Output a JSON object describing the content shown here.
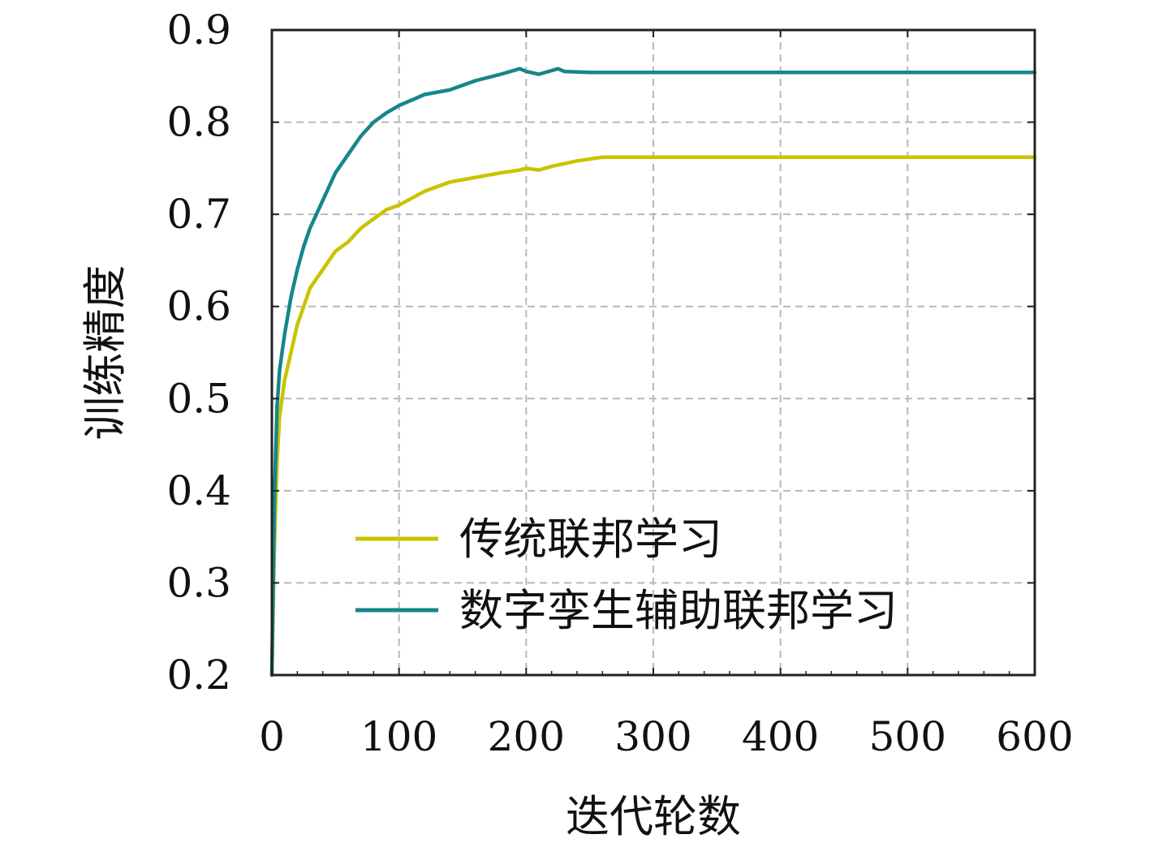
{
  "chart_data": {
    "type": "line",
    "title": "",
    "xlabel": "迭代轮数",
    "ylabel": "训练精度",
    "xlim": [
      0,
      600
    ],
    "ylim": [
      0.2,
      0.9
    ],
    "xticks": [
      0,
      100,
      200,
      300,
      400,
      500,
      600
    ],
    "xtick_labels": [
      "0",
      "100",
      "200",
      "300",
      "400",
      "500",
      "600"
    ],
    "yticks": [
      0.2,
      0.3,
      0.4,
      0.5,
      0.6,
      0.7,
      0.8,
      0.9
    ],
    "ytick_labels": [
      "0.2",
      "0.3",
      "0.4",
      "0.5",
      "0.6",
      "0.7",
      "0.8",
      "0.9"
    ],
    "grid": true,
    "legend_position": "lower-right",
    "series": [
      {
        "name": "传统联邦学习",
        "color": "#c8c400",
        "x": [
          0,
          2,
          4,
          6,
          8,
          10,
          15,
          20,
          25,
          30,
          40,
          50,
          60,
          70,
          80,
          90,
          100,
          120,
          140,
          160,
          180,
          195,
          200,
          210,
          220,
          230,
          240,
          250,
          260,
          300,
          350,
          400,
          450,
          500,
          550,
          600
        ],
        "y": [
          0.2,
          0.34,
          0.43,
          0.48,
          0.5,
          0.52,
          0.55,
          0.58,
          0.6,
          0.62,
          0.64,
          0.66,
          0.67,
          0.685,
          0.695,
          0.705,
          0.71,
          0.725,
          0.735,
          0.74,
          0.745,
          0.748,
          0.75,
          0.748,
          0.752,
          0.755,
          0.758,
          0.76,
          0.762,
          0.762,
          0.762,
          0.762,
          0.762,
          0.762,
          0.762,
          0.762
        ]
      },
      {
        "name": "数字孪生辅助联邦学习",
        "color": "#16868a",
        "x": [
          0,
          2,
          4,
          6,
          8,
          10,
          15,
          20,
          25,
          30,
          40,
          50,
          60,
          70,
          80,
          90,
          100,
          120,
          140,
          160,
          180,
          195,
          200,
          210,
          220,
          225,
          230,
          250,
          300,
          350,
          400,
          450,
          500,
          550,
          600
        ],
        "y": [
          0.2,
          0.39,
          0.49,
          0.53,
          0.55,
          0.57,
          0.61,
          0.64,
          0.665,
          0.685,
          0.715,
          0.745,
          0.765,
          0.785,
          0.8,
          0.81,
          0.818,
          0.83,
          0.835,
          0.845,
          0.852,
          0.858,
          0.855,
          0.852,
          0.856,
          0.858,
          0.855,
          0.854,
          0.854,
          0.854,
          0.854,
          0.854,
          0.854,
          0.854,
          0.854
        ]
      }
    ]
  }
}
